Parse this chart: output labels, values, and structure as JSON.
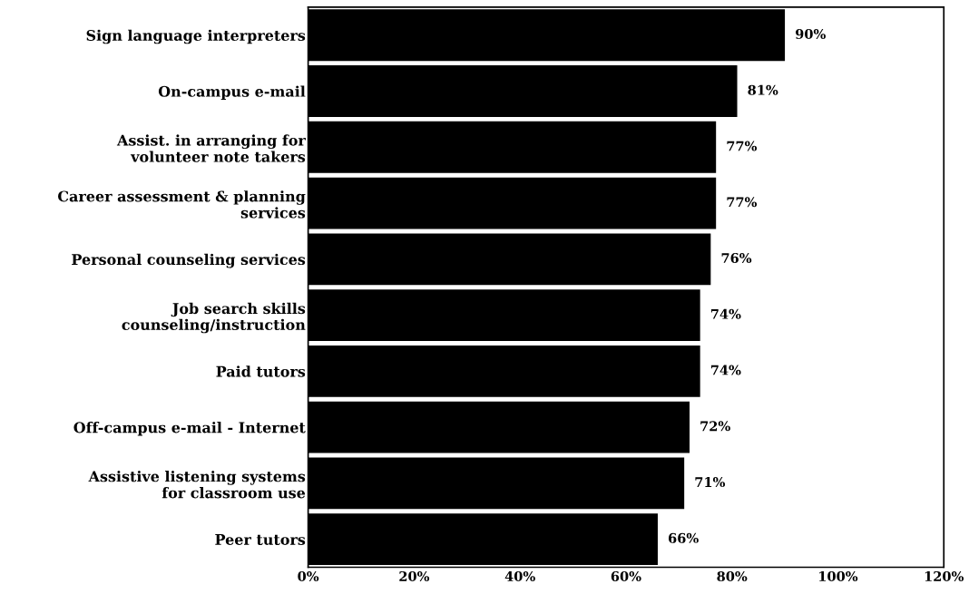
{
  "chart_data": {
    "type": "bar",
    "orientation": "horizontal",
    "categories": [
      "Sign language interpreters",
      "On-campus e-mail",
      "Assist. in arranging for\nvolunteer note takers",
      "Career assessment & planning\nservices",
      "Personal counseling services",
      "Job search skills\ncounseling/instruction",
      "Paid tutors",
      "Off-campus e-mail - Internet",
      "Assistive listening systems\nfor classroom use",
      "Peer tutors"
    ],
    "values": [
      90,
      81,
      77,
      77,
      76,
      74,
      74,
      72,
      71,
      66
    ],
    "value_labels": [
      "90%",
      "81%",
      "77%",
      "77%",
      "76%",
      "74%",
      "74%",
      "72%",
      "71%",
      "66%"
    ],
    "color": "#000000",
    "xlim": [
      0,
      120
    ],
    "xticks": [
      {
        "value": 0,
        "label": "0%"
      },
      {
        "value": 20,
        "label": "20%"
      },
      {
        "value": 40,
        "label": "40%"
      },
      {
        "value": 60,
        "label": "60%"
      },
      {
        "value": 80,
        "label": "80%"
      },
      {
        "value": 100,
        "label": "100%"
      },
      {
        "value": 120,
        "label": "120%"
      }
    ],
    "grid": false,
    "legend": false
  }
}
